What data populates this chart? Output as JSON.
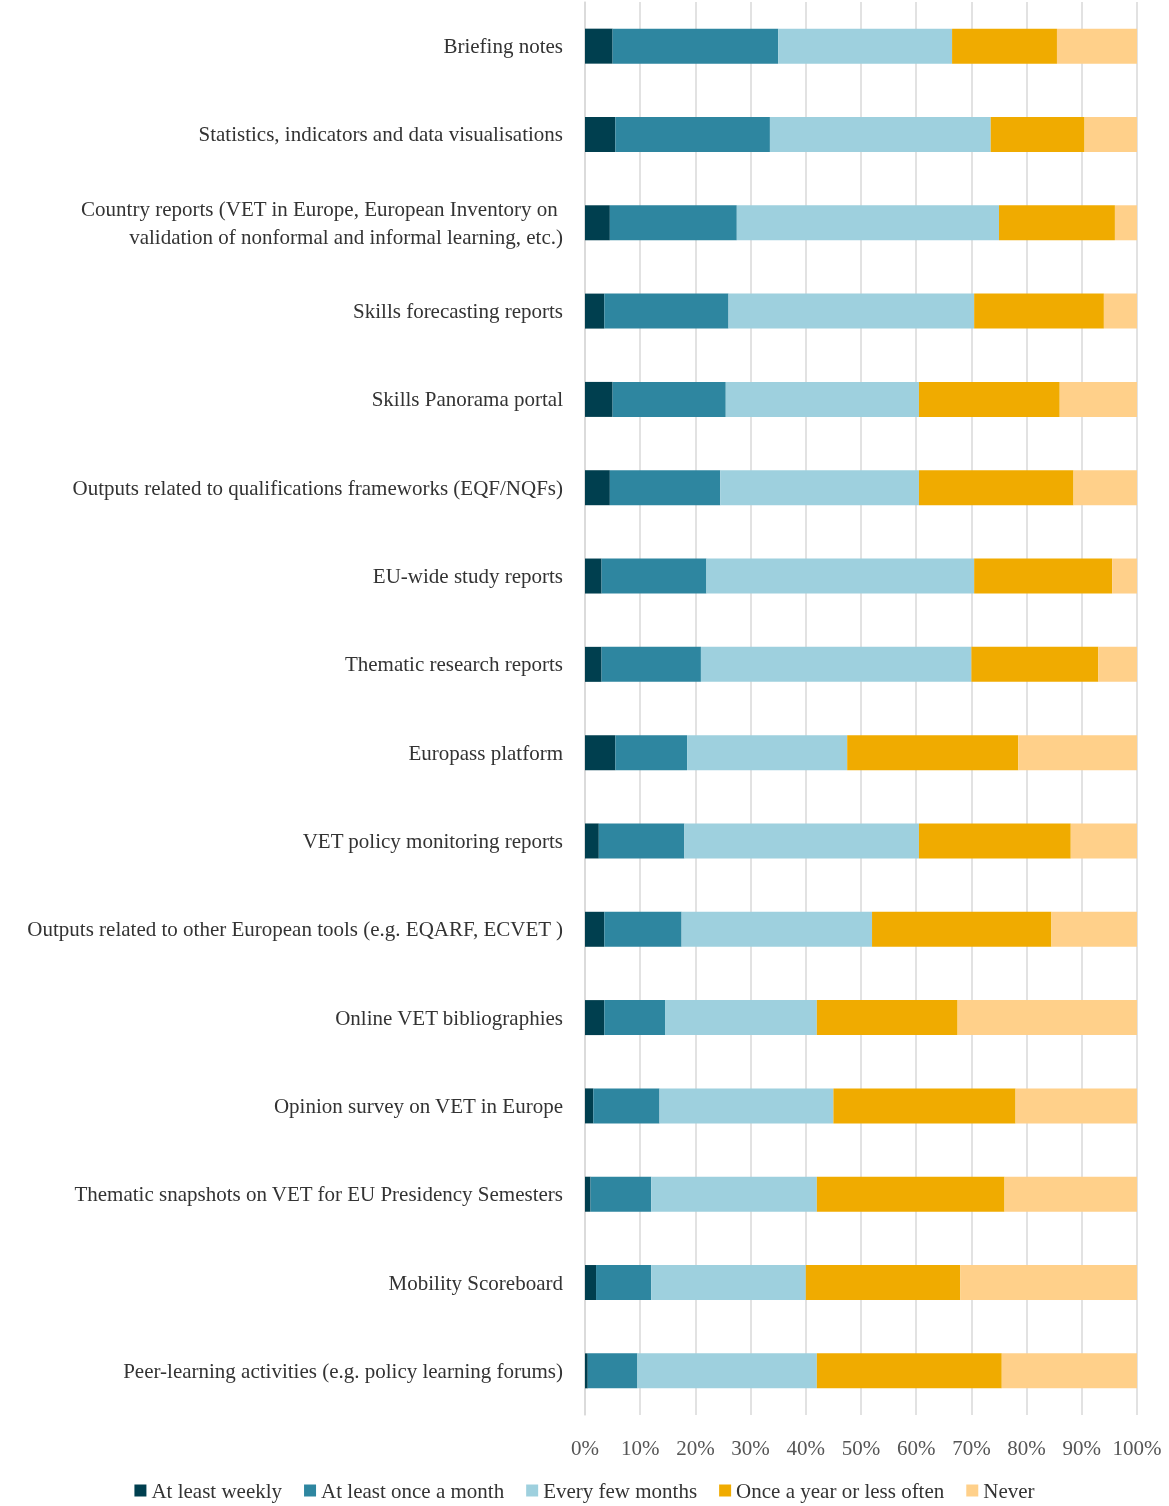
{
  "chart_data": {
    "type": "bar",
    "orientation": "horizontal",
    "stacked": true,
    "grid": "x",
    "legend": "bottom",
    "categories": [
      "Briefing notes",
      "Statistics, indicators and data visualisations",
      "Country reports (VET in Europe, European Inventory on validation of nonformal and informal learning, etc.)",
      "Skills forecasting reports",
      "Skills Panorama portal",
      "Outputs related to qualifications frameworks (EQF/NQFs)",
      "EU-wide study reports",
      "Thematic research reports",
      "Europass platform",
      "VET policy monitoring reports",
      "Outputs related to other European tools (e.g. EQARF, ECVET )",
      "Online VET bibliographies",
      "Opinion survey on VET in Europe",
      "Thematic snapshots on VET for EU Presidency Semesters",
      "Mobility Scoreboard",
      "Peer-learning activities (e.g. policy learning forums)"
    ],
    "xlim": [
      0,
      100
    ],
    "xticks": [
      {
        "value": 0,
        "label": "0%"
      },
      {
        "value": 10,
        "label": "10%"
      },
      {
        "value": 20,
        "label": "20%"
      },
      {
        "value": 30,
        "label": "30%"
      },
      {
        "value": 40,
        "label": "40%"
      },
      {
        "value": 50,
        "label": "50%"
      },
      {
        "value": 60,
        "label": "60%"
      },
      {
        "value": 70,
        "label": "70%"
      },
      {
        "value": 80,
        "label": "80%"
      },
      {
        "value": 90,
        "label": "90%"
      },
      {
        "value": 100,
        "label": "100%"
      }
    ],
    "series": [
      {
        "name": "At least weekly",
        "color": "#003f4f",
        "values": [
          5,
          5.5,
          4.5,
          3.5,
          5,
          4.5,
          3,
          3,
          5.5,
          2.5,
          3.5,
          3.5,
          1.5,
          1,
          2,
          0.5
        ]
      },
      {
        "name": "At least once a month",
        "color": "#2e86a0",
        "values": [
          30,
          28,
          23,
          22.5,
          20.5,
          20,
          19,
          18,
          13,
          15.5,
          14,
          11,
          12,
          11,
          10,
          9
        ]
      },
      {
        "name": "Every few months",
        "color": "#9ed0de",
        "values": [
          31.5,
          40,
          47.5,
          44.5,
          35,
          36,
          48.5,
          49,
          29,
          42.5,
          34.5,
          27.5,
          31.5,
          30,
          28,
          32.5
        ]
      },
      {
        "name": "Once a year or less often",
        "color": "#f0ab00",
        "values": [
          19,
          17,
          21,
          23.5,
          25.5,
          28,
          25,
          23,
          31,
          27.5,
          32.5,
          25.5,
          33,
          34,
          28,
          33.5
        ]
      },
      {
        "name": "Never",
        "color": "#ffd08a",
        "values": [
          14.5,
          9.5,
          4,
          6,
          14,
          11.5,
          4.5,
          7,
          21.5,
          12,
          15.5,
          32.5,
          22,
          24,
          32,
          24.5
        ]
      }
    ]
  }
}
